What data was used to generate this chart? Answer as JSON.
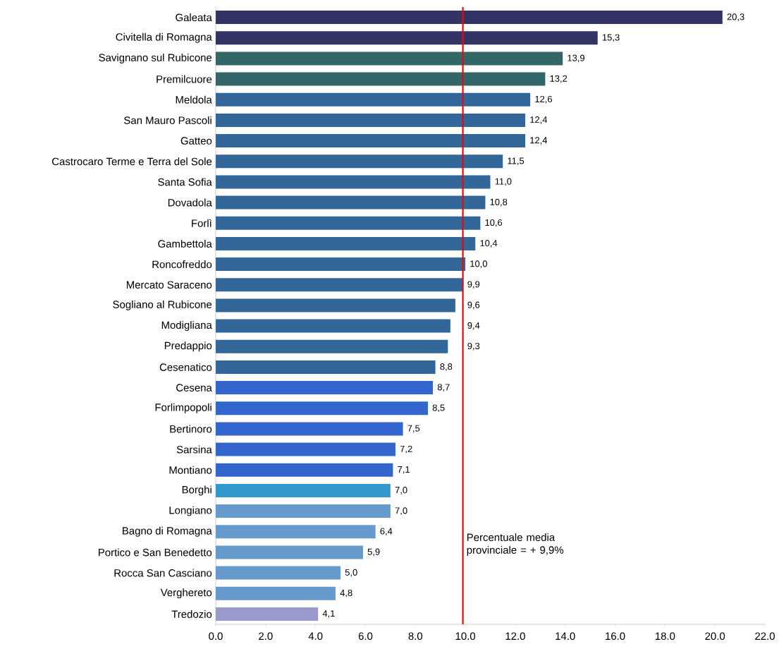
{
  "chart_data": {
    "type": "bar",
    "orientation": "horizontal",
    "categories": [
      "Galeata",
      "Civitella di Romagna",
      "Savignano sul Rubicone",
      "Premilcuore",
      "Meldola",
      "San Mauro Pascoli",
      "Gatteo",
      "Castrocaro Terme e Terra del Sole",
      "Santa Sofia",
      "Dovadola",
      "Forlì",
      "Gambettola",
      "Roncofreddo",
      "Mercato Saraceno",
      "Sogliano al Rubicone",
      "Modigliana",
      "Predappio",
      "Cesenatico",
      "Cesena",
      "Forlimpopoli",
      "Bertinoro",
      "Sarsina",
      "Montiano",
      "Borghi",
      "Longiano",
      "Bagno di Romagna",
      "Portico e San Benedetto",
      "Rocca San Casciano",
      "Verghereto",
      "Tredozio"
    ],
    "values": [
      20.3,
      15.3,
      13.9,
      13.2,
      12.6,
      12.4,
      12.4,
      11.5,
      11.0,
      10.8,
      10.6,
      10.4,
      10.0,
      9.9,
      9.6,
      9.4,
      9.3,
      8.8,
      8.7,
      8.5,
      7.5,
      7.2,
      7.1,
      7.0,
      7.0,
      6.4,
      5.9,
      5.0,
      4.8,
      4.1
    ],
    "value_labels": [
      "20,3",
      "15,3",
      "13,9",
      "13,2",
      "12,6",
      "12,4",
      "12,4",
      "11,5",
      "11,0",
      "10,8",
      "10,6",
      "10,4",
      "10,0",
      "9,9",
      "9,6",
      "9,4",
      "9,3",
      "8,8",
      "8,7",
      "8,5",
      "7,5",
      "7,2",
      "7,1",
      "7,0",
      "7,0",
      "6,4",
      "5,9",
      "5,0",
      "4,8",
      "4,1"
    ],
    "colors": [
      "#333366",
      "#333366",
      "#336666",
      "#336666",
      "#336699",
      "#336699",
      "#336699",
      "#336699",
      "#336699",
      "#336699",
      "#336699",
      "#336699",
      "#336699",
      "#336699",
      "#336699",
      "#336699",
      "#336699",
      "#336699",
      "#3366cc",
      "#3366cc",
      "#3366cc",
      "#3366cc",
      "#3366cc",
      "#3399cc",
      "#6699cc",
      "#6699cc",
      "#6699cc",
      "#6699cc",
      "#6699cc",
      "#9999cc"
    ],
    "xlim": [
      0,
      22
    ],
    "xticks": [
      {
        "value": 0,
        "label": "0.0"
      },
      {
        "value": 2,
        "label": "2.0"
      },
      {
        "value": 4,
        "label": "4.0"
      },
      {
        "value": 6,
        "label": "6.0"
      },
      {
        "value": 8,
        "label": "8.0"
      },
      {
        "value": 10,
        "label": "10.0"
      },
      {
        "value": 12,
        "label": "12.0"
      },
      {
        "value": 14,
        "label": "14.0"
      },
      {
        "value": 16,
        "label": "16.0"
      },
      {
        "value": 18,
        "label": "18.0"
      },
      {
        "value": 20,
        "label": "20.0"
      },
      {
        "value": 22,
        "label": "22.0"
      }
    ],
    "ref_lines": [
      {
        "axis": "x",
        "value": 9.9,
        "label": "Percentuale media provinciale =   + 9,9%",
        "color": "#ff0000"
      }
    ],
    "grid": false
  }
}
